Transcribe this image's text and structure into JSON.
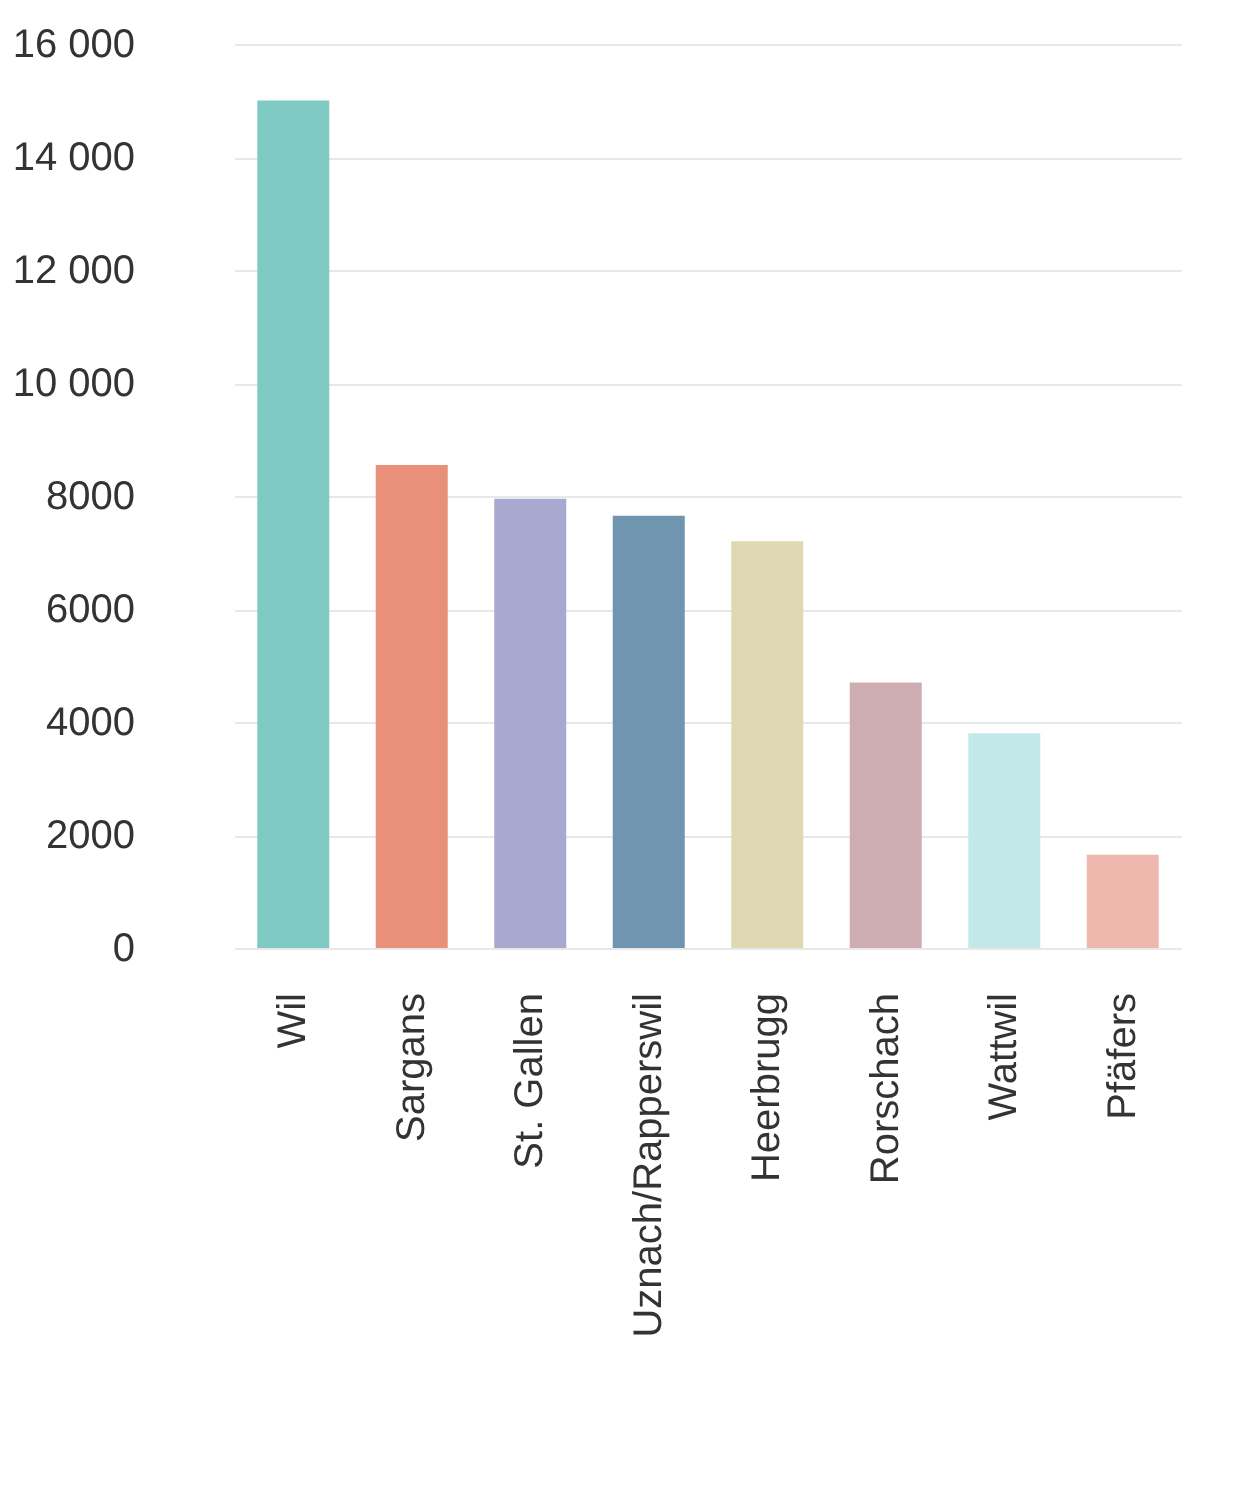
{
  "chart_data": {
    "type": "bar",
    "categories": [
      "Wil",
      "Sargans",
      "St. Gallen",
      "Uznach/Rapperswil",
      "Heerbrugg",
      "Rorschach",
      "Wattwil",
      "Pfäfers"
    ],
    "values": [
      15000,
      8550,
      7950,
      7650,
      7200,
      4700,
      3800,
      1650
    ],
    "colors": [
      "#7fcac3",
      "#e8907a",
      "#a9a9d0",
      "#6f95b0",
      "#ded8b3",
      "#cfacb2",
      "#c3e8e8",
      "#ecb8ad"
    ],
    "ylim": [
      0,
      16000
    ],
    "yticks": [
      0,
      2000,
      4000,
      6000,
      8000,
      {
        "value": 10000,
        "label": "10 000"
      },
      {
        "value": 12000,
        "label": "12 000"
      },
      {
        "value": 14000,
        "label": "14 000"
      },
      {
        "value": 16000,
        "label": "16 000"
      }
    ],
    "grid": "y",
    "legend": false
  }
}
